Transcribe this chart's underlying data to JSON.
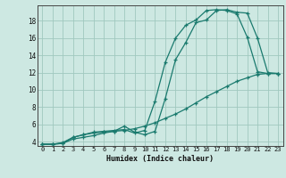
{
  "xlabel": "Humidex (Indice chaleur)",
  "bg_color": "#cde8e2",
  "grid_color": "#a0c8bf",
  "line_color": "#1a7a6e",
  "xlim": [
    -0.5,
    23.5
  ],
  "ylim": [
    3.5,
    19.8
  ],
  "xticks": [
    0,
    1,
    2,
    3,
    4,
    5,
    6,
    7,
    8,
    9,
    10,
    11,
    12,
    13,
    14,
    15,
    16,
    17,
    18,
    19,
    20,
    21,
    22,
    23
  ],
  "yticks": [
    4,
    6,
    8,
    10,
    12,
    14,
    16,
    18
  ],
  "line1_x": [
    0,
    1,
    2,
    3,
    4,
    5,
    6,
    7,
    8,
    9,
    10,
    11,
    12,
    13,
    14,
    15,
    16,
    17,
    18,
    19,
    20,
    21,
    22,
    23
  ],
  "line1_y": [
    3.7,
    3.7,
    3.8,
    4.5,
    4.8,
    5.1,
    5.2,
    5.3,
    5.4,
    5.0,
    5.3,
    8.7,
    13.2,
    16.0,
    17.5,
    18.1,
    19.2,
    19.3,
    19.2,
    18.8,
    16.1,
    12.1,
    11.9,
    11.9
  ],
  "line2_x": [
    0,
    1,
    2,
    3,
    4,
    5,
    6,
    7,
    8,
    9,
    10,
    11,
    12,
    13,
    14,
    15,
    16,
    17,
    18,
    19,
    20,
    21,
    22,
    23
  ],
  "line2_y": [
    3.7,
    3.7,
    3.9,
    4.5,
    4.8,
    5.0,
    5.1,
    5.2,
    5.8,
    5.1,
    4.8,
    5.2,
    9.0,
    13.5,
    15.5,
    17.8,
    18.1,
    19.2,
    19.3,
    19.0,
    18.9,
    16.0,
    12.0,
    11.9
  ],
  "line3_x": [
    0,
    1,
    2,
    3,
    4,
    5,
    6,
    7,
    8,
    9,
    10,
    11,
    12,
    13,
    14,
    15,
    16,
    17,
    18,
    19,
    20,
    21,
    22,
    23
  ],
  "line3_y": [
    3.7,
    3.7,
    3.8,
    4.3,
    4.5,
    4.7,
    5.0,
    5.2,
    5.3,
    5.5,
    5.8,
    6.2,
    6.7,
    7.2,
    7.8,
    8.5,
    9.2,
    9.8,
    10.4,
    11.0,
    11.4,
    11.8,
    11.9,
    11.9
  ]
}
